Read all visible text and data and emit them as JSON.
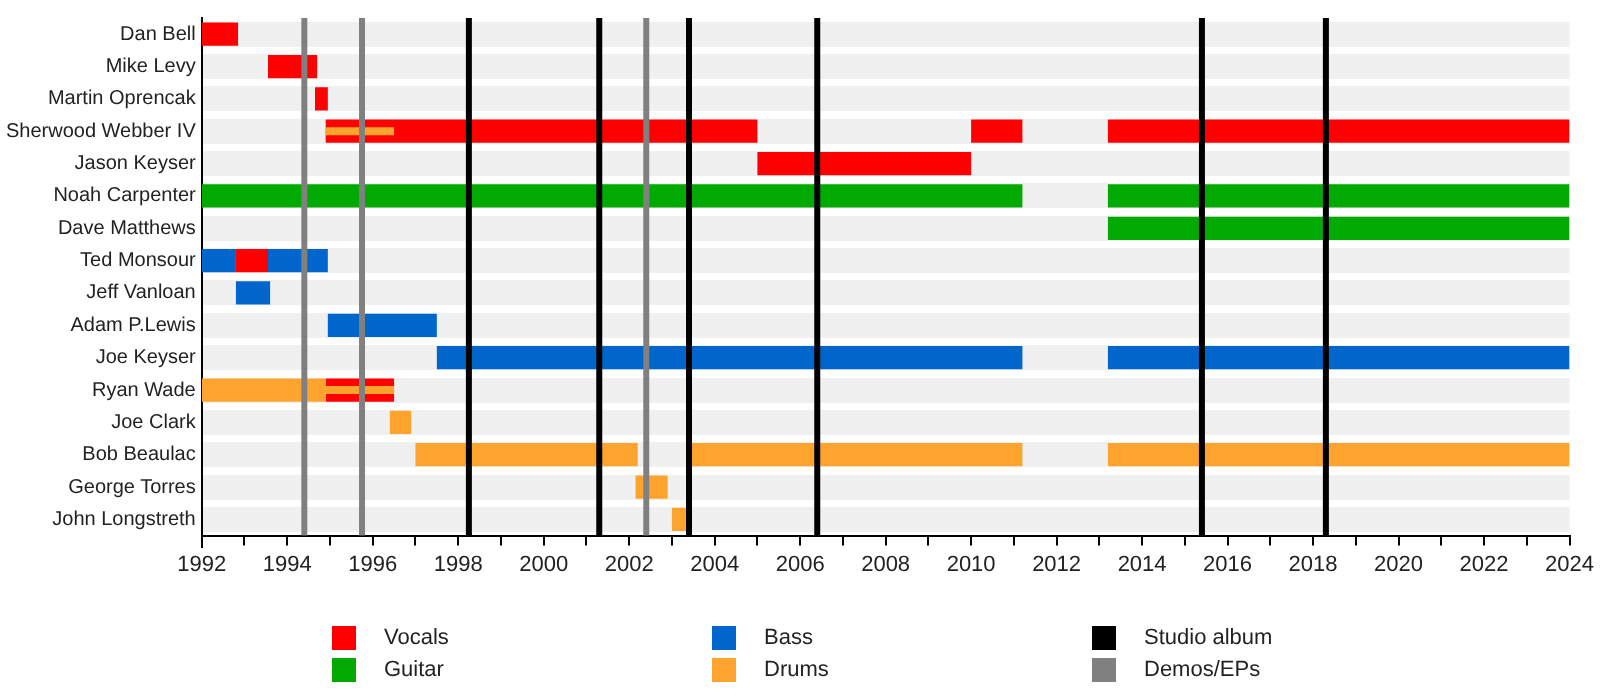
{
  "chart_data": {
    "type": "bar",
    "orientation": "horizontal",
    "categories": [
      "Dan Bell",
      "Mike Levy",
      "Martin Oprencak",
      "Sherwood Webber IV",
      "Jason Keyser",
      "Noah Carpenter",
      "Dave Matthews",
      "Ted Monsour",
      "Jeff Vanloan",
      "Adam P.Lewis",
      "Joe Keyser",
      "Ryan Wade",
      "Joe Clark",
      "Bob Beaulac",
      "George Torres",
      "John Longstreth"
    ],
    "series": [
      {
        "name": "Vocals",
        "color": "#ff0000",
        "base": [
          1992,
          1993.55,
          1994.65,
          1994.9,
          2005,
          null,
          null,
          1992.8,
          null,
          null,
          null,
          1994.9,
          null,
          null,
          null,
          null
        ],
        "values": [
          0.85,
          1.15,
          0.3,
          10.1,
          5,
          null,
          null,
          0.75,
          null,
          null,
          null,
          1.6,
          null,
          null,
          null,
          null
        ]
      },
      {
        "color": "#ff0000",
        "base": [
          null,
          null,
          null,
          2010,
          null,
          null,
          null,
          null,
          null,
          null,
          null,
          null,
          null,
          null,
          null,
          null
        ],
        "values": [
          null,
          null,
          null,
          1.2,
          null,
          null,
          null,
          null,
          null,
          null,
          null,
          null,
          null,
          null,
          null,
          null
        ]
      },
      {
        "color": "#ff0000",
        "base": [
          null,
          null,
          null,
          2013.2,
          null,
          null,
          null,
          null,
          null,
          null,
          null,
          null,
          null,
          null,
          null,
          null
        ],
        "values": [
          null,
          null,
          null,
          10.8,
          null,
          null,
          null,
          null,
          null,
          null,
          null,
          null,
          null,
          null,
          null,
          null
        ]
      },
      {
        "name": "Guitar",
        "color": "#00aa00",
        "base": [
          null,
          null,
          null,
          null,
          null,
          1992,
          null,
          null,
          null,
          null,
          null,
          null,
          null,
          null,
          null,
          null
        ],
        "values": [
          null,
          null,
          null,
          null,
          null,
          19.2,
          null,
          null,
          null,
          null,
          null,
          null,
          null,
          null,
          null,
          null
        ]
      },
      {
        "color": "#00aa00",
        "base": [
          null,
          null,
          null,
          null,
          null,
          2013.2,
          2013.2,
          null,
          null,
          null,
          null,
          null,
          null,
          null,
          null,
          null
        ],
        "values": [
          null,
          null,
          null,
          null,
          null,
          10.8,
          10.8,
          null,
          null,
          null,
          null,
          null,
          null,
          null,
          null,
          null
        ]
      },
      {
        "name": "Bass",
        "color": "#0066cc",
        "base": [
          null,
          null,
          null,
          null,
          null,
          null,
          null,
          1992,
          1992.8,
          1994.95,
          1997.5,
          null,
          null,
          null,
          null,
          null
        ],
        "values": [
          null,
          null,
          null,
          null,
          null,
          null,
          null,
          0.8,
          0.8,
          2.55,
          13.7,
          null,
          null,
          null,
          null,
          null
        ]
      },
      {
        "color": "#0066cc",
        "base": [
          null,
          null,
          null,
          null,
          null,
          null,
          null,
          1993.55,
          null,
          null,
          2013.2,
          null,
          null,
          null,
          null,
          null
        ],
        "values": [
          null,
          null,
          null,
          null,
          null,
          null,
          null,
          1.4,
          null,
          null,
          10.8,
          null,
          null,
          null,
          null,
          null
        ]
      },
      {
        "name": "Drums",
        "color": "#ffa32f",
        "base": [
          null,
          null,
          null,
          null,
          null,
          null,
          null,
          null,
          null,
          null,
          null,
          1992,
          1996.4,
          1997,
          2002.15,
          2003
        ],
        "values": [
          null,
          null,
          null,
          null,
          null,
          null,
          null,
          null,
          null,
          null,
          null,
          2.9,
          0.5,
          5.2,
          0.75,
          0.45
        ]
      },
      {
        "color": "#ffa32f",
        "base": [
          null,
          null,
          null,
          null,
          null,
          null,
          null,
          null,
          null,
          null,
          null,
          null,
          null,
          2003.4,
          null,
          null
        ],
        "values": [
          null,
          null,
          null,
          null,
          null,
          null,
          null,
          null,
          null,
          null,
          null,
          null,
          null,
          7.8,
          null,
          null
        ]
      },
      {
        "color": "#ffa32f",
        "base": [
          null,
          null,
          null,
          null,
          null,
          null,
          null,
          null,
          null,
          null,
          null,
          null,
          null,
          2013.2,
          null,
          null
        ],
        "values": [
          null,
          null,
          null,
          null,
          null,
          null,
          null,
          null,
          null,
          null,
          null,
          null,
          null,
          10.8,
          null,
          null
        ]
      },
      {
        "color": "#ffa32f",
        "base": [
          null,
          null,
          null,
          1994.9,
          null,
          null,
          null,
          null,
          null,
          null,
          null,
          1994.9,
          null,
          null,
          null,
          null
        ],
        "values": [
          null,
          null,
          null,
          1.6,
          null,
          null,
          null,
          null,
          null,
          null,
          null,
          1.6,
          null,
          null,
          null,
          null
        ]
      }
    ],
    "xlim": [
      1992,
      2024
    ],
    "xticks": [
      1992,
      {
        "value": 1993,
        "label": null
      },
      1994,
      {
        "value": 1995,
        "label": null
      },
      1996,
      {
        "value": 1997,
        "label": null
      },
      1998,
      {
        "value": 1999,
        "label": null
      },
      2000,
      {
        "value": 2001,
        "label": null
      },
      2002,
      {
        "value": 2003,
        "label": null
      },
      2004,
      {
        "value": 2005,
        "label": null
      },
      2006,
      {
        "value": 2007,
        "label": null
      },
      2008,
      {
        "value": 2009,
        "label": null
      },
      2010,
      {
        "value": 2011,
        "label": null
      },
      2012,
      {
        "value": 2013,
        "label": null
      },
      2014,
      {
        "value": 2015,
        "label": null
      },
      2016,
      {
        "value": 2017,
        "label": null
      },
      2018,
      {
        "value": 2019,
        "label": null
      },
      2020,
      {
        "value": 2021,
        "label": null
      },
      2022,
      {
        "value": 2023,
        "label": null
      },
      2024
    ],
    "ref_lines": [
      {
        "axis": "x",
        "value": 1998.25,
        "label": "Studio album",
        "color": "#000000"
      },
      {
        "axis": "x",
        "value": 2001.3,
        "color": "#000000"
      },
      {
        "axis": "x",
        "value": 2003.4,
        "color": "#000000"
      },
      {
        "axis": "x",
        "value": 2006.4,
        "color": "#000000"
      },
      {
        "axis": "x",
        "value": 2015.4,
        "color": "#000000"
      },
      {
        "axis": "x",
        "value": 2018.3,
        "color": "#000000"
      },
      {
        "axis": "x",
        "value": 1994.4,
        "label": "Demos/EPs",
        "color": "#808080"
      },
      {
        "axis": "x",
        "value": 1995.75,
        "color": "#808080"
      },
      {
        "axis": "x",
        "value": 2002.4,
        "color": "#808080"
      }
    ],
    "grid": "y",
    "legend": "bottom"
  }
}
